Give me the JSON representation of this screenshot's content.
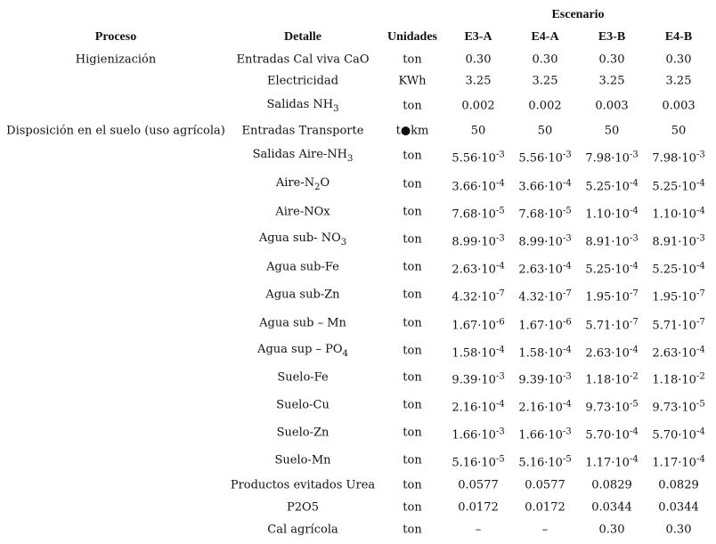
{
  "header": {
    "group": "Escenario",
    "columns": [
      "Proceso",
      "Detalle",
      "Unidades",
      "E3-A",
      "E4-A",
      "E3-B",
      "E4-B"
    ]
  },
  "rows": [
    {
      "proceso": "Higienización",
      "detalle": "Entradas Cal viva CaO",
      "unidades": "ton",
      "values": [
        "0.30",
        "0.30",
        "0.30",
        "0.30"
      ]
    },
    {
      "detalle": "Electricidad",
      "unidades": "KWh",
      "values": [
        "3.25",
        "3.25",
        "3.25",
        "3.25"
      ]
    },
    {
      "detalle": {
        "base": "Salidas NH",
        "sub": "3"
      },
      "unidades": "ton",
      "values": [
        "0.002",
        "0.002",
        "0.003",
        "0.003"
      ]
    },
    {
      "proceso": "Disposición en el suelo (uso agrícola)",
      "detalle": "Entradas Transporte",
      "unidades": "t●km",
      "values": [
        "50",
        "50",
        "50",
        "50"
      ]
    },
    {
      "detalle": {
        "base": "Salidas Aire-NH",
        "sub": "3"
      },
      "unidades": "ton",
      "values": [
        {
          "base": "5.56·10",
          "sup": "-3"
        },
        {
          "base": "5.56·10",
          "sup": "-3"
        },
        {
          "base": "7.98·10",
          "sup": "-3"
        },
        {
          "base": "7.98·10",
          "sup": "-3"
        }
      ]
    },
    {
      "detalle": {
        "base": "Aire-N",
        "sub": "2",
        "after": "O"
      },
      "unidades": "ton",
      "values": [
        {
          "base": "3.66·10",
          "sup": "-4"
        },
        {
          "base": "3.66·10",
          "sup": "-4"
        },
        {
          "base": "5.25·10",
          "sup": "-4"
        },
        {
          "base": "5.25·10",
          "sup": "-4"
        }
      ]
    },
    {
      "detalle": "Aire-NOx",
      "unidades": "ton",
      "values": [
        {
          "base": "7.68·10",
          "sup": "-5"
        },
        {
          "base": "7.68·10",
          "sup": "-5"
        },
        {
          "base": "1.10·10",
          "sup": "-4"
        },
        {
          "base": "1.10·10",
          "sup": "-4"
        }
      ]
    },
    {
      "detalle": {
        "base": "Agua sub- NO",
        "sub": "3"
      },
      "unidades": "ton",
      "values": [
        {
          "base": "8.99·10",
          "sup": "-3"
        },
        {
          "base": "8.99·10",
          "sup": "-3"
        },
        {
          "base": "8.91·10",
          "sup": "-3"
        },
        {
          "base": "8.91·10",
          "sup": "-3"
        }
      ]
    },
    {
      "detalle": "Agua sub-Fe",
      "unidades": "ton",
      "values": [
        {
          "base": "2.63·10",
          "sup": "-4"
        },
        {
          "base": "2.63·10",
          "sup": "-4"
        },
        {
          "base": "5.25·10",
          "sup": "-4"
        },
        {
          "base": "5.25·10",
          "sup": "-4"
        }
      ]
    },
    {
      "detalle": "Agua sub-Zn",
      "unidades": "ton",
      "values": [
        {
          "base": "4.32·10",
          "sup": "-7"
        },
        {
          "base": "4.32·10",
          "sup": "-7"
        },
        {
          "base": "1.95·10",
          "sup": "-7"
        },
        {
          "base": "1.95·10",
          "sup": "-7"
        }
      ]
    },
    {
      "detalle": "Agua sub – Mn",
      "unidades": "ton",
      "values": [
        {
          "base": "1.67·10",
          "sup": "-6"
        },
        {
          "base": "1.67·10",
          "sup": "-6"
        },
        {
          "base": "5.71·10",
          "sup": "-7"
        },
        {
          "base": "5.71·10",
          "sup": "-7"
        }
      ]
    },
    {
      "detalle": {
        "base": "Agua sup – PO",
        "sub": "4"
      },
      "unidades": "ton",
      "values": [
        {
          "base": "1.58·10",
          "sup": "-4"
        },
        {
          "base": "1.58·10",
          "sup": "-4"
        },
        {
          "base": "2.63·10",
          "sup": "-4"
        },
        {
          "base": "2.63·10",
          "sup": "-4"
        }
      ]
    },
    {
      "detalle": "Suelo-Fe",
      "unidades": "ton",
      "values": [
        {
          "base": "9.39·10",
          "sup": "-3"
        },
        {
          "base": "9.39·10",
          "sup": "-3"
        },
        {
          "base": "1.18·10",
          "sup": "-2"
        },
        {
          "base": "1.18·10",
          "sup": "-2"
        }
      ]
    },
    {
      "detalle": "Suelo-Cu",
      "unidades": "ton",
      "values": [
        {
          "base": "2.16·10",
          "sup": "-4"
        },
        {
          "base": "2.16·10",
          "sup": "-4"
        },
        {
          "base": "9.73·10",
          "sup": "-5"
        },
        {
          "base": "9.73·10",
          "sup": "-5"
        }
      ]
    },
    {
      "detalle": "Suelo-Zn",
      "unidades": "ton",
      "values": [
        {
          "base": "1.66·10",
          "sup": "-3"
        },
        {
          "base": "1.66·10",
          "sup": "-3"
        },
        {
          "base": "5.70·10",
          "sup": "-4"
        },
        {
          "base": "5.70·10",
          "sup": "-4"
        }
      ]
    },
    {
      "detalle": "Suelo-Mn",
      "unidades": "ton",
      "values": [
        {
          "base": "5.16·10",
          "sup": "-5"
        },
        {
          "base": "5.16·10",
          "sup": "-5"
        },
        {
          "base": "1.17·10",
          "sup": "-4"
        },
        {
          "base": "1.17·10",
          "sup": "-4"
        }
      ]
    },
    {
      "detalle": "Productos evitados Urea",
      "unidades": "ton",
      "values": [
        "0.0577",
        "0.0577",
        "0.0829",
        "0.0829"
      ]
    },
    {
      "detalle": "P2O5",
      "unidades": "ton",
      "values": [
        "0.0172",
        "0.0172",
        "0.0344",
        "0.0344"
      ]
    },
    {
      "detalle": "Cal agrícola",
      "unidades": "ton",
      "values": [
        "–",
        "–",
        "0.30",
        "0.30"
      ]
    }
  ]
}
